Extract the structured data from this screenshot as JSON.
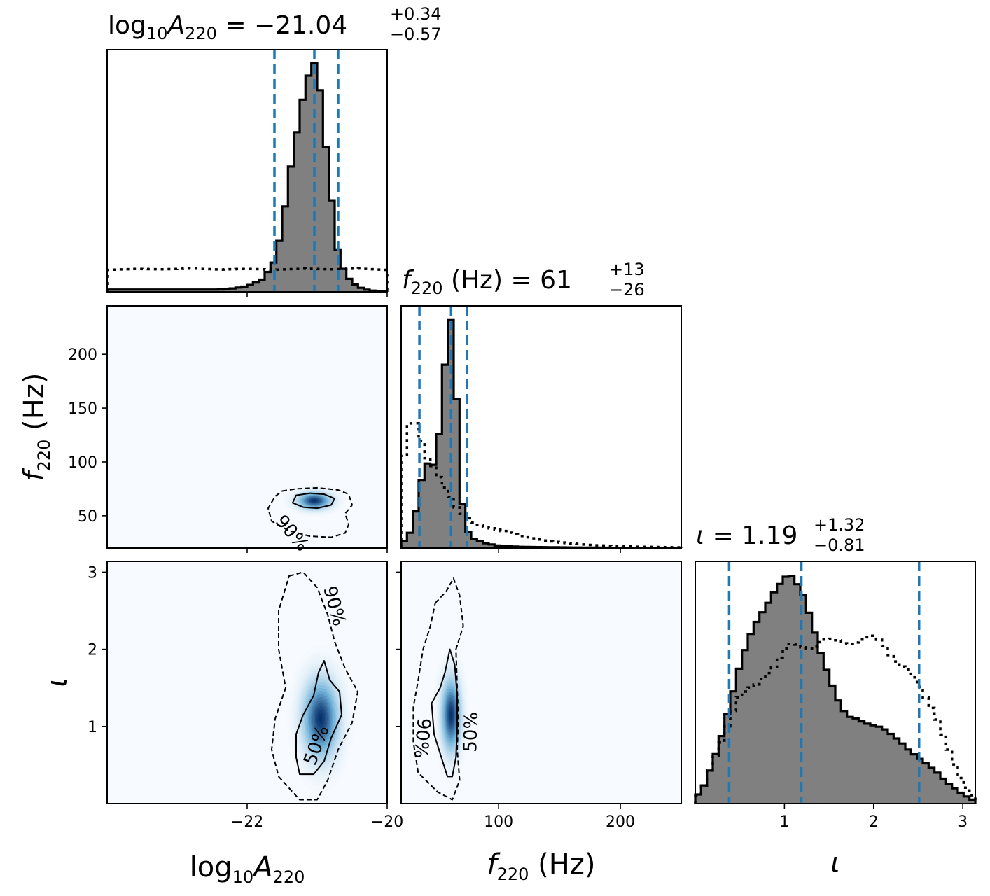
{
  "colors": {
    "filled_hist": "#808080",
    "hist_edge": "#000000",
    "quantile_line": "#1f77b4",
    "density_low": "#f7fbff",
    "density_high": "#08306b"
  },
  "titles": [
    {
      "param": "log10A220",
      "name_main": "log",
      "name_sub1": "10",
      "name_var": "A",
      "name_sub2": "220",
      "eq": " = ",
      "median": "−21.04",
      "plus": "+0.34",
      "minus": "−0.57"
    },
    {
      "param": "f220",
      "name_var": "f",
      "name_sub2": "220",
      "name_unit": " (Hz)",
      "eq": " = ",
      "median": "61",
      "plus": "+13",
      "minus": "−26"
    },
    {
      "param": "iota",
      "name_var": "ι",
      "eq": " = ",
      "median": "1.19",
      "plus": "+1.32",
      "minus": "−0.81"
    }
  ],
  "axis_titles": {
    "x_log10A220": {
      "main": "log",
      "sub1": "10",
      "var": "A",
      "sub2": "220"
    },
    "x_f220": {
      "var": "f",
      "sub2": "220",
      "unit": " (Hz)"
    },
    "x_iota": {
      "var": "ι"
    },
    "y_f220": {
      "var": "f",
      "sub2": "220",
      "unit": " (Hz)"
    },
    "y_iota": {
      "var": "ι"
    }
  },
  "contour_labels": {
    "p90": "90%",
    "p50": "50%"
  },
  "chart_data": [
    {
      "type": "histogram",
      "panel": "log10A220 marginal",
      "x_range": [
        -24,
        -20
      ],
      "quantiles": [
        -21.61,
        -21.04,
        -20.7
      ],
      "posterior": {
        "x": [
          -24.0,
          -23.8,
          -23.6,
          -23.4,
          -23.2,
          -23.0,
          -22.8,
          -22.6,
          -22.4,
          -22.2,
          -22.0,
          -21.8,
          -21.7,
          -21.6,
          -21.5,
          -21.4,
          -21.3,
          -21.2,
          -21.1,
          -21.05,
          -21.0,
          -20.95,
          -20.9,
          -20.8,
          -20.7,
          -20.6,
          -20.5,
          -20.4,
          -20.3,
          -20.2,
          -20.0
        ],
        "density": [
          0.01,
          0.01,
          0.01,
          0.01,
          0.01,
          0.01,
          0.01,
          0.01,
          0.01,
          0.015,
          0.025,
          0.05,
          0.09,
          0.14,
          0.28,
          0.5,
          0.68,
          0.85,
          0.97,
          1.0,
          0.96,
          0.86,
          0.7,
          0.42,
          0.16,
          0.08,
          0.04,
          0.02,
          0.01,
          0.005,
          0.003
        ]
      },
      "prior": {
        "x": [
          -24.0,
          -23.6,
          -23.2,
          -22.8,
          -22.4,
          -22.0,
          -21.6,
          -21.2,
          -20.8,
          -20.4,
          -20.0
        ],
        "density": [
          0.095,
          0.1,
          0.098,
          0.102,
          0.097,
          0.1,
          0.096,
          0.101,
          0.098,
          0.102,
          0.095
        ]
      }
    },
    {
      "type": "histogram",
      "panel": "f220 marginal",
      "x_range": [
        20,
        250
      ],
      "x_ticks": [
        100,
        200
      ],
      "quantiles": [
        35,
        61,
        74
      ],
      "posterior": {
        "x": [
          20,
          25,
          30,
          35,
          40,
          45,
          50,
          55,
          58,
          61,
          64,
          67,
          70,
          75,
          80,
          90,
          100,
          120,
          150,
          200,
          250
        ],
        "density": [
          0.02,
          0.04,
          0.1,
          0.25,
          0.38,
          0.34,
          0.42,
          0.75,
          0.9,
          1.0,
          0.8,
          0.5,
          0.2,
          0.07,
          0.04,
          0.02,
          0.01,
          0.005,
          0.003,
          0.001,
          0.001
        ]
      },
      "prior": {
        "x": [
          20,
          25,
          30,
          35,
          40,
          45,
          50,
          55,
          60,
          65,
          70,
          80,
          90,
          100,
          110,
          120,
          140,
          160,
          180,
          200,
          220,
          250
        ],
        "density": [
          0.3,
          0.52,
          0.57,
          0.5,
          0.4,
          0.37,
          0.32,
          0.27,
          0.23,
          0.18,
          0.15,
          0.11,
          0.09,
          0.08,
          0.065,
          0.05,
          0.03,
          0.02,
          0.012,
          0.008,
          0.005,
          0.003
        ]
      }
    },
    {
      "type": "histogram",
      "panel": "iota marginal",
      "x_range": [
        0,
        3.14
      ],
      "x_ticks": [
        1,
        2,
        3
      ],
      "quantiles": [
        0.38,
        1.19,
        2.51
      ],
      "posterior": {
        "x": [
          0.0,
          0.1,
          0.2,
          0.3,
          0.4,
          0.5,
          0.6,
          0.7,
          0.8,
          0.9,
          1.0,
          1.05,
          1.1,
          1.2,
          1.3,
          1.4,
          1.5,
          1.6,
          1.7,
          1.8,
          1.9,
          2.0,
          2.1,
          2.2,
          2.3,
          2.4,
          2.5,
          2.6,
          2.7,
          2.8,
          2.9,
          3.0,
          3.14
        ],
        "density": [
          0.02,
          0.08,
          0.18,
          0.3,
          0.45,
          0.6,
          0.72,
          0.8,
          0.86,
          0.93,
          0.98,
          1.0,
          0.98,
          0.92,
          0.8,
          0.66,
          0.55,
          0.45,
          0.38,
          0.37,
          0.35,
          0.34,
          0.33,
          0.3,
          0.27,
          0.23,
          0.2,
          0.17,
          0.14,
          0.1,
          0.07,
          0.04,
          0.01
        ]
      },
      "prior": {
        "x": [
          0.0,
          0.1,
          0.2,
          0.3,
          0.4,
          0.5,
          0.6,
          0.7,
          0.8,
          0.9,
          1.0,
          1.1,
          1.2,
          1.3,
          1.4,
          1.5,
          1.6,
          1.7,
          1.8,
          1.9,
          2.0,
          2.1,
          2.2,
          2.3,
          2.4,
          2.5,
          2.6,
          2.7,
          2.8,
          2.9,
          3.0,
          3.14
        ],
        "density": [
          0.01,
          0.08,
          0.18,
          0.27,
          0.38,
          0.47,
          0.5,
          0.52,
          0.56,
          0.6,
          0.67,
          0.7,
          0.68,
          0.67,
          0.7,
          0.72,
          0.71,
          0.69,
          0.7,
          0.72,
          0.73,
          0.7,
          0.64,
          0.6,
          0.58,
          0.52,
          0.45,
          0.38,
          0.28,
          0.18,
          0.09,
          0.02
        ]
      }
    },
    {
      "type": "heatmap",
      "panel": "f220 vs log10A220",
      "x_range": [
        -24,
        -20
      ],
      "y_range": [
        20,
        245
      ],
      "x_ticks": [
        -22,
        -20
      ],
      "y_ticks": [
        50,
        100,
        150,
        200
      ],
      "density_peak": {
        "x": -21.04,
        "y": 64,
        "sx": 0.15,
        "sy": 5
      },
      "contour_90": [
        [
          -21.5,
          73
        ],
        [
          -21.3,
          75
        ],
        [
          -21.0,
          76
        ],
        [
          -20.7,
          74
        ],
        [
          -20.55,
          70
        ],
        [
          -20.5,
          60
        ],
        [
          -20.6,
          52
        ],
        [
          -20.55,
          42
        ],
        [
          -20.6,
          34
        ],
        [
          -20.8,
          30
        ],
        [
          -21.1,
          31
        ],
        [
          -21.4,
          36
        ],
        [
          -21.65,
          45
        ],
        [
          -21.7,
          57
        ],
        [
          -21.6,
          68
        ]
      ],
      "contour_50": [
        [
          -21.3,
          69
        ],
        [
          -21.1,
          71
        ],
        [
          -20.9,
          70
        ],
        [
          -20.75,
          66
        ],
        [
          -20.8,
          60
        ],
        [
          -21.0,
          57
        ],
        [
          -21.2,
          58
        ],
        [
          -21.35,
          62
        ]
      ]
    },
    {
      "type": "heatmap",
      "panel": "iota vs log10A220",
      "x_range": [
        -24,
        -20
      ],
      "y_range": [
        0,
        3.14
      ],
      "x_ticks": [
        -22,
        -20
      ],
      "y_ticks": [
        1,
        2,
        3
      ],
      "density_peak": {
        "x": -20.95,
        "y": 1.1,
        "sx": 0.16,
        "sy": 0.32
      },
      "contour_90": [
        [
          -21.4,
          2.95
        ],
        [
          -21.2,
          3.0
        ],
        [
          -21.0,
          2.8
        ],
        [
          -20.85,
          2.45
        ],
        [
          -20.75,
          2.1
        ],
        [
          -20.6,
          1.75
        ],
        [
          -20.42,
          1.45
        ],
        [
          -20.5,
          1.05
        ],
        [
          -20.7,
          0.7
        ],
        [
          -20.85,
          0.3
        ],
        [
          -21.0,
          0.05
        ],
        [
          -21.25,
          0.05
        ],
        [
          -21.55,
          0.35
        ],
        [
          -21.65,
          0.7
        ],
        [
          -21.6,
          1.1
        ],
        [
          -21.45,
          1.5
        ],
        [
          -21.55,
          2.0
        ],
        [
          -21.55,
          2.5
        ]
      ],
      "contour_50": [
        [
          -20.9,
          1.85
        ],
        [
          -20.82,
          1.6
        ],
        [
          -20.68,
          1.45
        ],
        [
          -20.65,
          1.15
        ],
        [
          -20.8,
          0.85
        ],
        [
          -20.9,
          0.55
        ],
        [
          -21.05,
          0.38
        ],
        [
          -21.25,
          0.38
        ],
        [
          -21.3,
          0.6
        ],
        [
          -21.3,
          0.9
        ],
        [
          -21.2,
          1.15
        ],
        [
          -21.05,
          1.4
        ],
        [
          -20.98,
          1.7
        ]
      ]
    },
    {
      "type": "heatmap",
      "panel": "iota vs f220",
      "x_range": [
        20,
        250
      ],
      "y_range": [
        0,
        3.14
      ],
      "x_ticks": [
        100,
        200
      ],
      "y_ticks": [
        1,
        2,
        3
      ],
      "density_peak": {
        "x": 61,
        "y": 1.15,
        "sx": 5,
        "sy": 0.3
      },
      "contour_90": [
        [
          48,
          2.6
        ],
        [
          57,
          2.75
        ],
        [
          63,
          2.92
        ],
        [
          68,
          2.7
        ],
        [
          71,
          2.3
        ],
        [
          65,
          2.0
        ],
        [
          66,
          1.5
        ],
        [
          67,
          1.1
        ],
        [
          66,
          0.7
        ],
        [
          68,
          0.3
        ],
        [
          62,
          0.05
        ],
        [
          50,
          0.15
        ],
        [
          34,
          0.4
        ],
        [
          30,
          0.8
        ],
        [
          30,
          1.25
        ],
        [
          34,
          1.6
        ],
        [
          38,
          2.0
        ],
        [
          44,
          2.3
        ]
      ],
      "contour_50": [
        [
          60,
          2.0
        ],
        [
          64,
          1.8
        ],
        [
          66,
          1.4
        ],
        [
          66,
          1.0
        ],
        [
          65,
          0.6
        ],
        [
          62,
          0.35
        ],
        [
          58,
          0.35
        ],
        [
          54,
          0.55
        ],
        [
          47,
          0.9
        ],
        [
          45,
          1.3
        ],
        [
          52,
          1.5
        ],
        [
          56,
          1.7
        ]
      ]
    }
  ]
}
